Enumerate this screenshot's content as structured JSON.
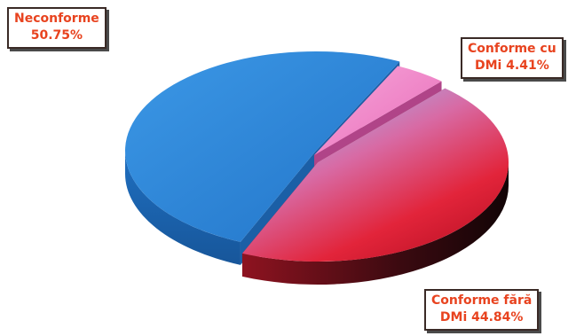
{
  "chart_data": {
    "type": "pie",
    "title": "",
    "slices": [
      {
        "label": "Neconforme",
        "value": 50.75,
        "value_text": "50.75%",
        "color": "#2f86d6"
      },
      {
        "label": "Conforme cu DMi",
        "value": 4.41,
        "value_text": "DMi 4.41%",
        "label_text": "Conforme cu",
        "color": "#f07fc6"
      },
      {
        "label": "Conforme fără DMi",
        "value": 44.84,
        "value_text": "DMi 44.84%",
        "label_text": "Conforme fără",
        "color": "#e0202a"
      }
    ],
    "exploded": true,
    "three_d": true,
    "legend": "none",
    "label_color": "#e8431f"
  }
}
